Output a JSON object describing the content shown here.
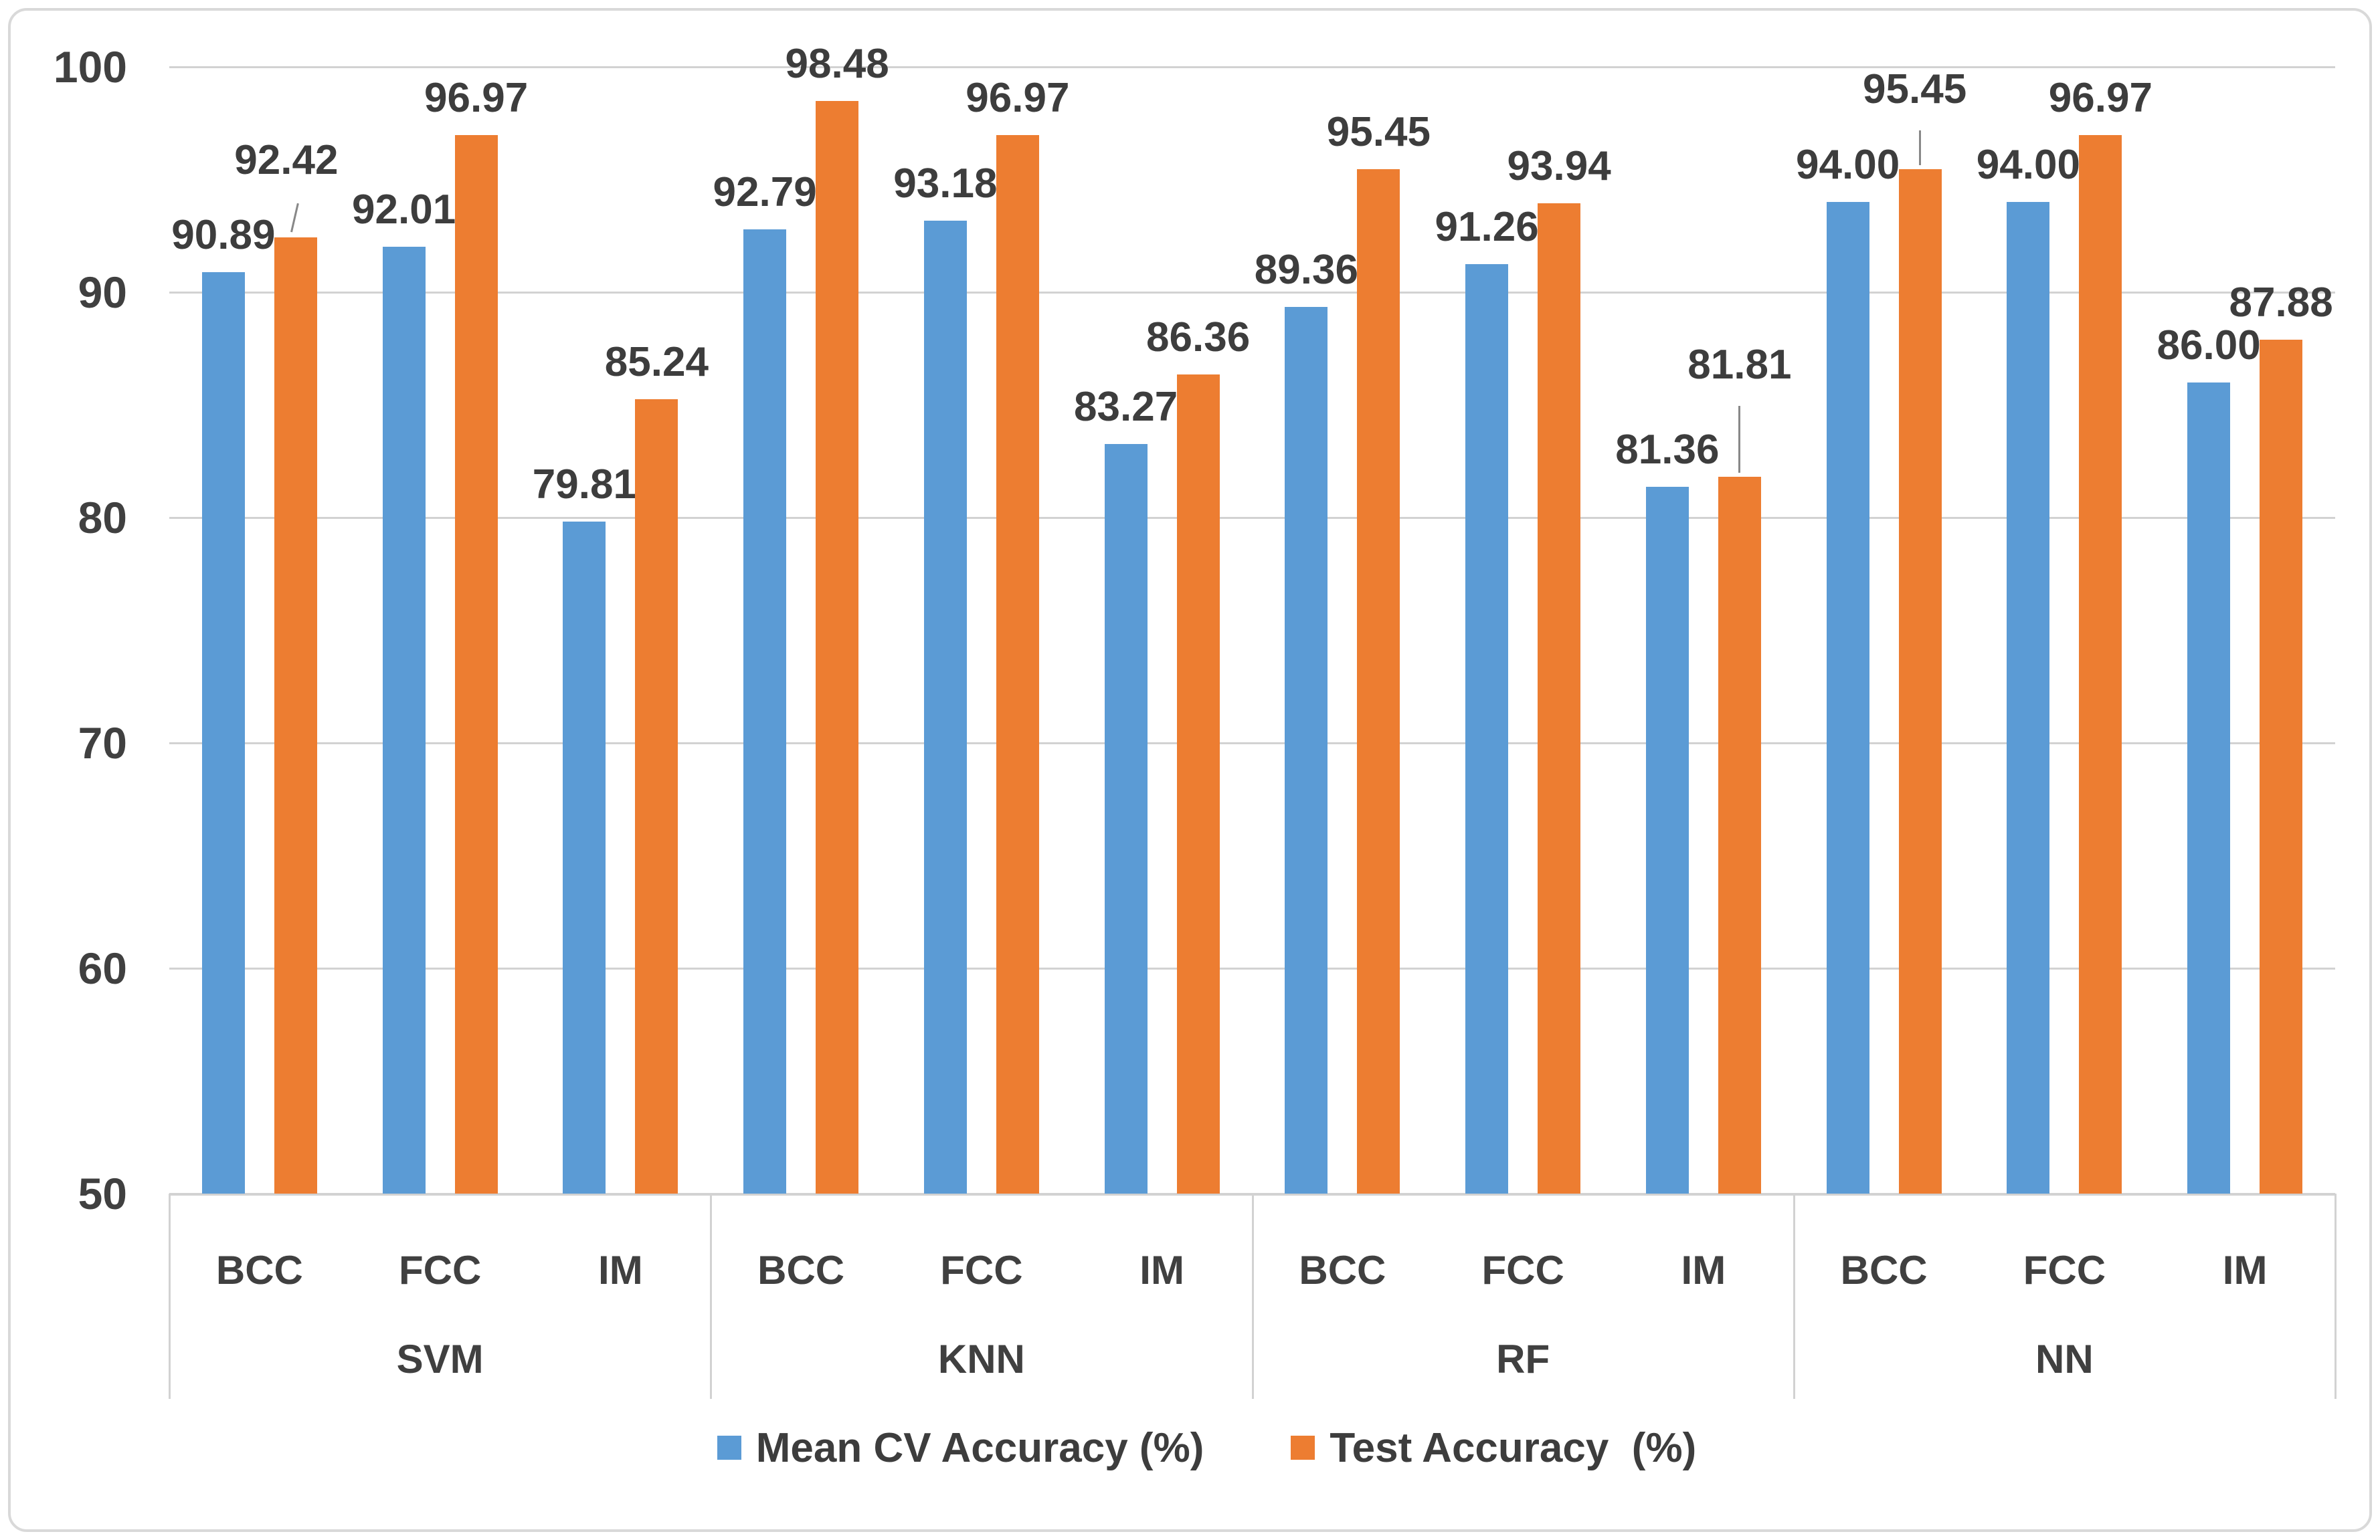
{
  "chart_data": {
    "type": "bar",
    "title": "",
    "xlabel": "",
    "ylabel": "",
    "ylim": [
      50,
      100
    ],
    "yticks": [
      50,
      60,
      70,
      80,
      90,
      100
    ],
    "grid": true,
    "legend_position": "bottom",
    "groups": [
      "SVM",
      "KNN",
      "RF",
      "NN"
    ],
    "categories_per_group": [
      "BCC",
      "FCC",
      "IM"
    ],
    "series": [
      {
        "name": "Mean CV Accuracy (%)",
        "color": "#5B9BD5",
        "values": [
          90.89,
          92.01,
          79.81,
          92.79,
          93.18,
          83.27,
          89.36,
          91.26,
          81.36,
          94.0,
          94.0,
          86.0
        ],
        "labels": [
          "90.89",
          "92.01",
          "79.81",
          "92.79",
          "93.18",
          "83.27",
          "89.36",
          "91.26",
          "81.36",
          "94.00",
          "94.00",
          "86.00"
        ]
      },
      {
        "name": "Test Accuracy  (%)",
        "color": "#ED7D31",
        "values": [
          92.42,
          96.97,
          85.24,
          98.48,
          96.97,
          86.36,
          95.45,
          93.94,
          81.81,
          95.45,
          96.97,
          87.88
        ],
        "labels": [
          "92.42",
          "96.97",
          "85.24",
          "98.48",
          "96.97",
          "86.36",
          "95.45",
          "93.94",
          "81.81",
          "95.45",
          "96.97",
          "87.88"
        ]
      }
    ],
    "label_hints": [
      {
        "series": 1,
        "index": 0,
        "raise": 60,
        "leader": "diagonal",
        "dx": -14
      },
      {
        "series": 1,
        "index": 8,
        "raise": 112,
        "leader": "vertical",
        "dx": 0
      },
      {
        "series": 1,
        "index": 9,
        "raise": 64,
        "leader": "vertical",
        "dx": -8
      }
    ],
    "colors": {
      "bar_blue": "#5B9BD5",
      "bar_orange": "#ED7D31",
      "text": "#404040",
      "gridline": "#D2D2D2",
      "frame_border": "#D9D9D9",
      "leader_line": "#888888"
    }
  }
}
